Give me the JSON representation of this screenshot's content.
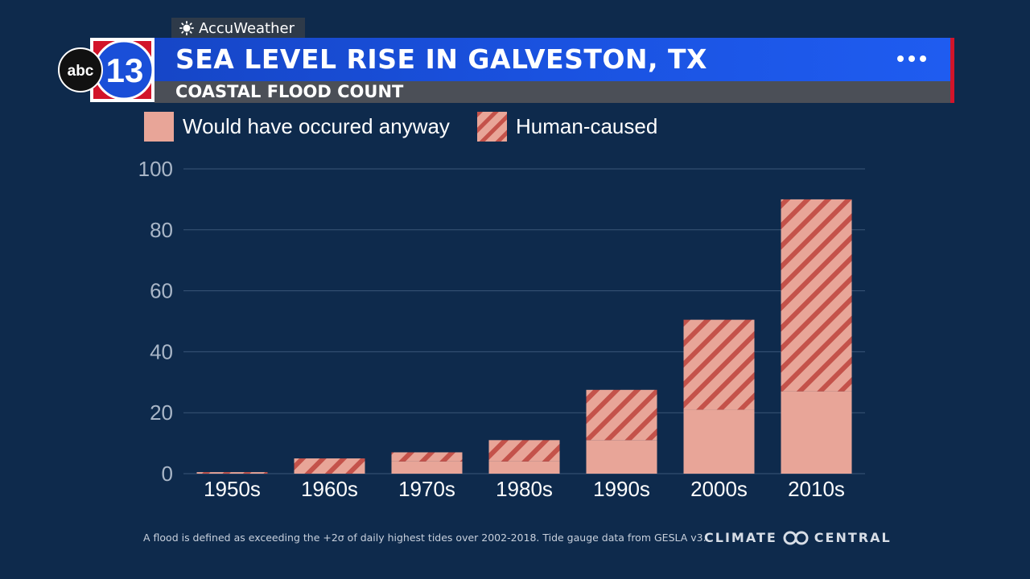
{
  "header": {
    "sponsor": "AccuWeather",
    "sponsor_icon": "sun-icon",
    "station_logo_text": "abc",
    "station_number": "13",
    "title": "SEA LEVEL RISE IN GALVESTON, TX",
    "subtitle": "COASTAL FLOOD COUNT",
    "menu_icon": "more-dots-icon"
  },
  "colors": {
    "background": "#0e2a4c",
    "natural": "#e8a598",
    "human_stripe": "#c4524a",
    "title_bar": "#1a52e0",
    "accent_red": "#d2142a"
  },
  "chart_data": {
    "type": "bar",
    "stacked": true,
    "categories": [
      "1950s",
      "1960s",
      "1970s",
      "1980s",
      "1990s",
      "2000s",
      "2010s"
    ],
    "series": [
      {
        "name": "Would have occured anyway",
        "values": [
          0,
          0,
          4,
          4,
          11,
          21,
          27
        ],
        "pattern": "solid"
      },
      {
        "name": "Human-caused",
        "values": [
          0.5,
          5,
          3,
          7,
          16.5,
          29.5,
          63
        ],
        "pattern": "hatched"
      }
    ],
    "totals": [
      0.5,
      5,
      7,
      11,
      27.5,
      50.5,
      90
    ],
    "ylim": [
      0,
      100
    ],
    "yticks": [
      0,
      20,
      40,
      60,
      80,
      100
    ],
    "grid": true,
    "legend_position": "top-left"
  },
  "footer": {
    "note": "A flood is defined as exceeding the +2σ of daily highest tides over 2002-2018. Tide gauge data from GESLA v3.",
    "brand_left": "CLIMATE",
    "brand_right": "CENTRAL"
  }
}
